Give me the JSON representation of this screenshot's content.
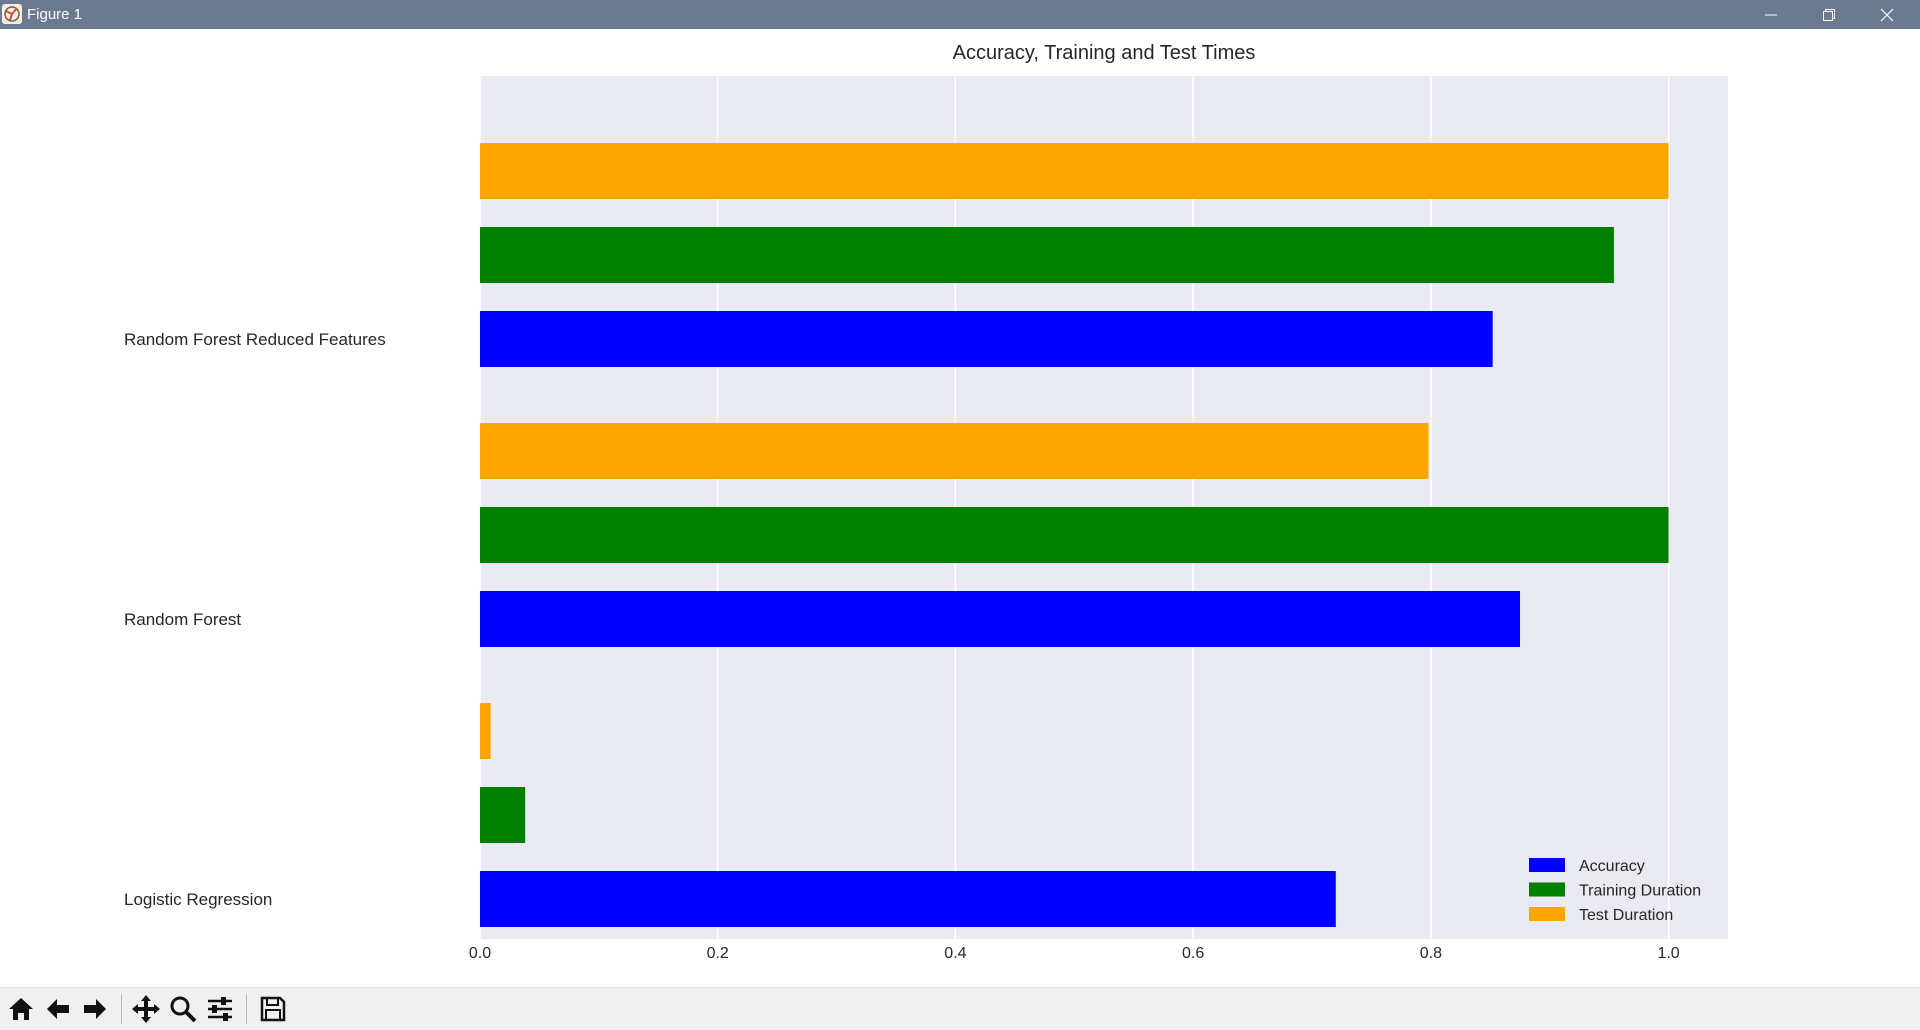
{
  "window": {
    "title": "Figure 1",
    "controls": [
      "minimize-icon",
      "restore-icon",
      "close-icon"
    ],
    "titlebar_color": "#6b7a8f"
  },
  "toolbar": {
    "buttons": [
      "home-icon",
      "back-arrow-icon",
      "forward-arrow-icon",
      "pan-icon",
      "zoom-icon",
      "configure-subplots-icon",
      "save-icon"
    ]
  },
  "chart_data": {
    "type": "bar",
    "orientation": "horizontal",
    "title": "Accuracy, Training and Test Times",
    "xlabel": "",
    "ylabel": "",
    "categories": [
      "Logistic Regression",
      "Random Forest",
      "Random Forest Reduced Features"
    ],
    "series": [
      {
        "name": "Accuracy",
        "color": "#0000ff",
        "values": [
          0.72,
          0.875,
          0.852
        ]
      },
      {
        "name": "Training Duration",
        "color": "#008000",
        "values": [
          0.038,
          1.0,
          0.954
        ]
      },
      {
        "name": "Test Duration",
        "color": "#ffa500",
        "values": [
          0.009,
          0.798,
          1.0
        ]
      }
    ],
    "xlim": [
      0.0,
      1.05
    ],
    "xticks": [
      "0.0",
      "0.2",
      "0.4",
      "0.6",
      "0.8",
      "1.0"
    ],
    "grid": true,
    "background": "#eaeaf2",
    "legend_position": "lower right"
  }
}
